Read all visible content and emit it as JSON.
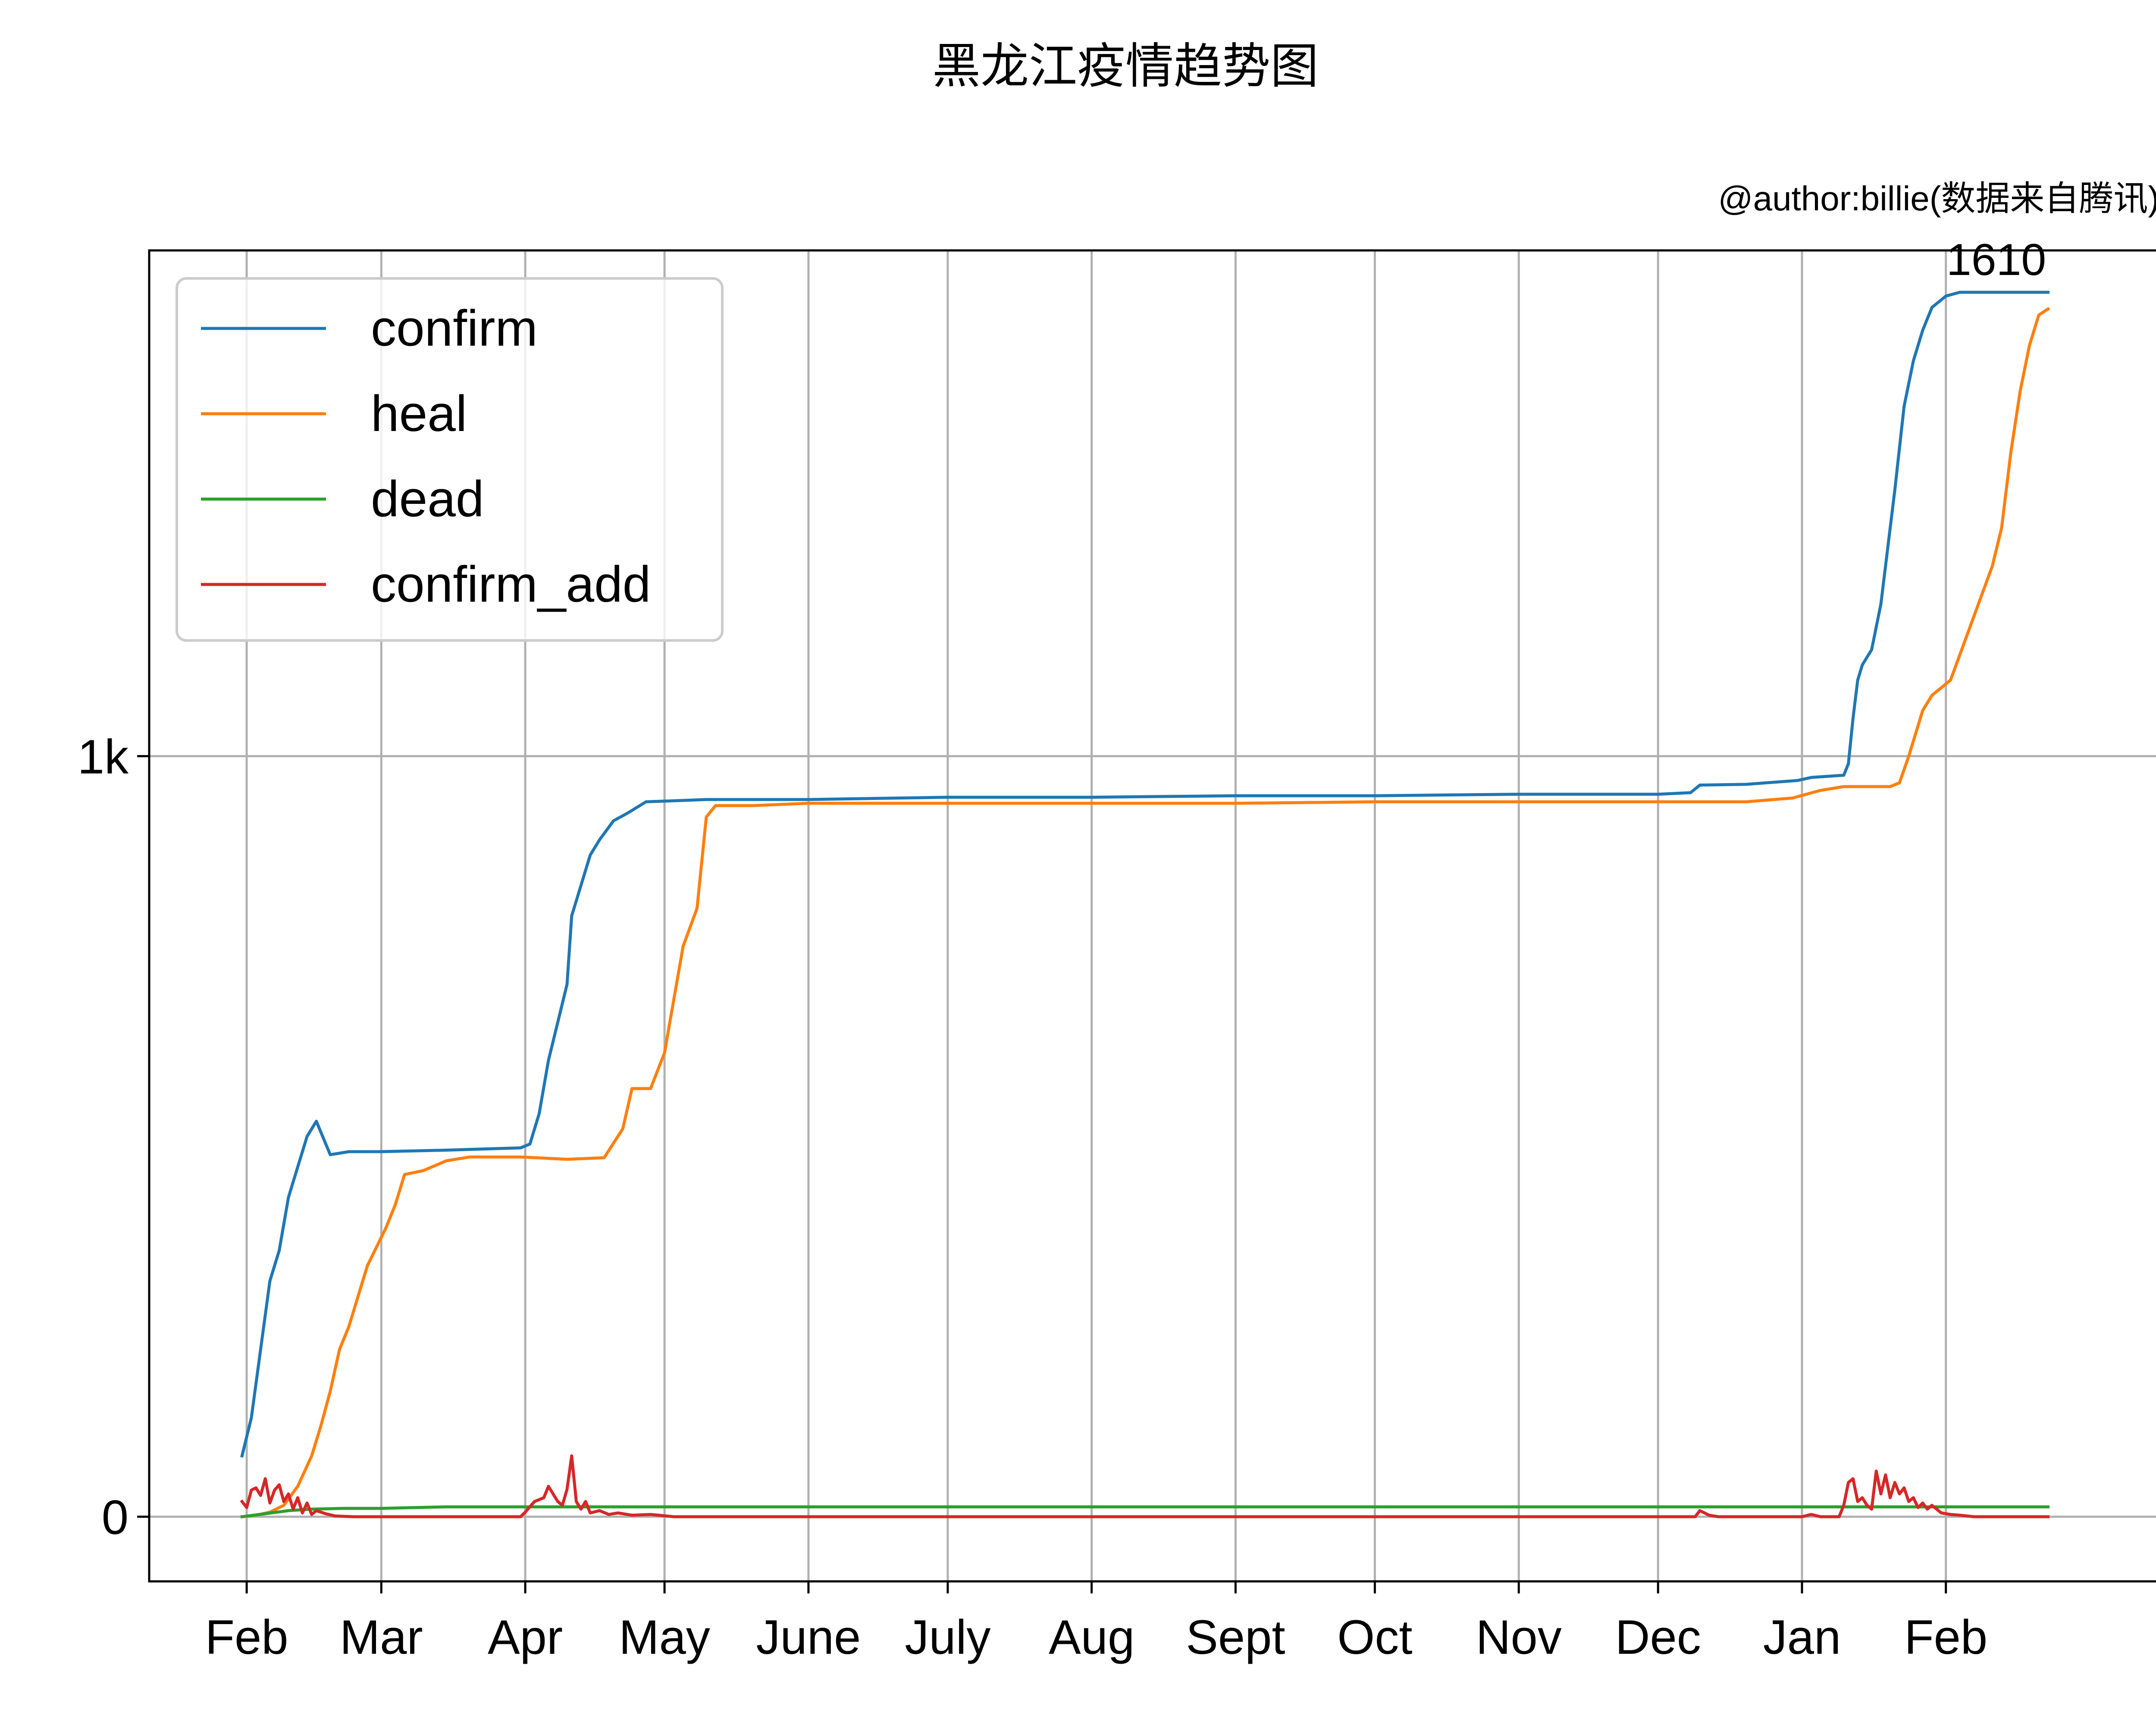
{
  "chart_data": {
    "type": "line",
    "title": "黑龙江疫情趋势图",
    "subtitle": "@author:billie(数据来自腾讯)",
    "annotation": "1610",
    "xlabel": "",
    "ylabel": "",
    "xlim": [
      "2020-01-11",
      "2021-03-19"
    ],
    "ylim": [
      -85,
      1665
    ],
    "x_ticks": [
      {
        "date": "2020-02-01",
        "label": "Feb"
      },
      {
        "date": "2020-03-01",
        "label": "Mar"
      },
      {
        "date": "2020-04-01",
        "label": "Apr"
      },
      {
        "date": "2020-05-01",
        "label": "May"
      },
      {
        "date": "2020-06-01",
        "label": "June"
      },
      {
        "date": "2020-07-01",
        "label": "July"
      },
      {
        "date": "2020-08-01",
        "label": "Aug"
      },
      {
        "date": "2020-09-01",
        "label": "Sept"
      },
      {
        "date": "2020-10-01",
        "label": "Oct"
      },
      {
        "date": "2020-11-01",
        "label": "Nov"
      },
      {
        "date": "2020-12-01",
        "label": "Dec"
      },
      {
        "date": "2021-01-01",
        "label": "Jan"
      },
      {
        "date": "2021-02-01",
        "label": "Feb"
      }
    ],
    "y_ticks": [
      {
        "value": 0,
        "label": "0"
      },
      {
        "value": 1000,
        "label": "1k"
      }
    ],
    "grid": true,
    "legend_position": "upper-left",
    "series": [
      {
        "name": "confirm",
        "color": "#1f77b4",
        "points": [
          [
            "2020-01-31",
            80
          ],
          [
            "2020-02-02",
            130
          ],
          [
            "2020-02-04",
            220
          ],
          [
            "2020-02-06",
            310
          ],
          [
            "2020-02-08",
            350
          ],
          [
            "2020-02-10",
            420
          ],
          [
            "2020-02-12",
            460
          ],
          [
            "2020-02-14",
            500
          ],
          [
            "2020-02-16",
            520
          ],
          [
            "2020-02-19",
            476
          ],
          [
            "2020-02-23",
            480
          ],
          [
            "2020-03-01",
            480
          ],
          [
            "2020-03-15",
            482
          ],
          [
            "2020-03-31",
            485
          ],
          [
            "2020-04-02",
            490
          ],
          [
            "2020-04-04",
            530
          ],
          [
            "2020-04-06",
            600
          ],
          [
            "2020-04-08",
            650
          ],
          [
            "2020-04-10",
            700
          ],
          [
            "2020-04-11",
            790
          ],
          [
            "2020-04-13",
            830
          ],
          [
            "2020-04-15",
            870
          ],
          [
            "2020-04-17",
            890
          ],
          [
            "2020-04-20",
            915
          ],
          [
            "2020-04-23",
            925
          ],
          [
            "2020-04-27",
            940
          ],
          [
            "2020-05-10",
            943
          ],
          [
            "2020-06-01",
            943
          ],
          [
            "2020-07-01",
            946
          ],
          [
            "2020-08-01",
            946
          ],
          [
            "2020-09-01",
            948
          ],
          [
            "2020-10-01",
            948
          ],
          [
            "2020-11-01",
            950
          ],
          [
            "2020-12-01",
            950
          ],
          [
            "2020-12-08",
            952
          ],
          [
            "2020-12-10",
            962
          ],
          [
            "2020-12-20",
            963
          ],
          [
            "2020-12-31",
            968
          ],
          [
            "2021-01-03",
            972
          ],
          [
            "2021-01-10",
            975
          ],
          [
            "2021-01-11",
            990
          ],
          [
            "2021-01-12",
            1050
          ],
          [
            "2021-01-13",
            1100
          ],
          [
            "2021-01-14",
            1120
          ],
          [
            "2021-01-16",
            1140
          ],
          [
            "2021-01-18",
            1200
          ],
          [
            "2021-01-20",
            1300
          ],
          [
            "2021-01-21",
            1350
          ],
          [
            "2021-01-23",
            1460
          ],
          [
            "2021-01-25",
            1520
          ],
          [
            "2021-01-27",
            1560
          ],
          [
            "2021-01-29",
            1590
          ],
          [
            "2021-02-01",
            1605
          ],
          [
            "2021-02-04",
            1610
          ],
          [
            "2021-02-23",
            1610
          ]
        ]
      },
      {
        "name": "heal",
        "color": "#ff7f0e",
        "points": [
          [
            "2020-01-31",
            0
          ],
          [
            "2020-02-03",
            2
          ],
          [
            "2020-02-06",
            6
          ],
          [
            "2020-02-09",
            15
          ],
          [
            "2020-02-12",
            40
          ],
          [
            "2020-02-15",
            80
          ],
          [
            "2020-02-17",
            120
          ],
          [
            "2020-02-19",
            165
          ],
          [
            "2020-02-21",
            220
          ],
          [
            "2020-02-23",
            250
          ],
          [
            "2020-02-25",
            290
          ],
          [
            "2020-02-27",
            330
          ],
          [
            "2020-02-29",
            355
          ],
          [
            "2020-03-02",
            380
          ],
          [
            "2020-03-04",
            410
          ],
          [
            "2020-03-06",
            450
          ],
          [
            "2020-03-10",
            455
          ],
          [
            "2020-03-15",
            468
          ],
          [
            "2020-03-20",
            473
          ],
          [
            "2020-03-31",
            473
          ],
          [
            "2020-04-10",
            470
          ],
          [
            "2020-04-18",
            472
          ],
          [
            "2020-04-22",
            510
          ],
          [
            "2020-04-24",
            563
          ],
          [
            "2020-04-28",
            563
          ],
          [
            "2020-05-01",
            610
          ],
          [
            "2020-05-03",
            680
          ],
          [
            "2020-05-05",
            750
          ],
          [
            "2020-05-08",
            800
          ],
          [
            "2020-05-10",
            920
          ],
          [
            "2020-05-12",
            935
          ],
          [
            "2020-05-20",
            935
          ],
          [
            "2020-06-01",
            938
          ],
          [
            "2020-07-01",
            938
          ],
          [
            "2020-08-01",
            938
          ],
          [
            "2020-09-01",
            938
          ],
          [
            "2020-10-01",
            940
          ],
          [
            "2020-11-01",
            940
          ],
          [
            "2020-12-01",
            940
          ],
          [
            "2020-12-20",
            940
          ],
          [
            "2020-12-30",
            945
          ],
          [
            "2021-01-05",
            955
          ],
          [
            "2021-01-10",
            960
          ],
          [
            "2021-01-20",
            960
          ],
          [
            "2021-01-22",
            965
          ],
          [
            "2021-01-24",
            1000
          ],
          [
            "2021-01-27",
            1060
          ],
          [
            "2021-01-29",
            1080
          ],
          [
            "2021-02-02",
            1100
          ],
          [
            "2021-02-05",
            1150
          ],
          [
            "2021-02-08",
            1200
          ],
          [
            "2021-02-11",
            1250
          ],
          [
            "2021-02-13",
            1300
          ],
          [
            "2021-02-15",
            1400
          ],
          [
            "2021-02-17",
            1480
          ],
          [
            "2021-02-19",
            1540
          ],
          [
            "2021-02-21",
            1580
          ],
          [
            "2021-02-23",
            1588
          ]
        ]
      },
      {
        "name": "dead",
        "color": "#2ca02c",
        "points": [
          [
            "2020-01-31",
            0
          ],
          [
            "2020-02-05",
            4
          ],
          [
            "2020-02-10",
            8
          ],
          [
            "2020-02-15",
            10
          ],
          [
            "2020-02-22",
            11
          ],
          [
            "2020-03-01",
            11
          ],
          [
            "2020-03-15",
            13
          ],
          [
            "2020-04-01",
            13
          ],
          [
            "2020-06-01",
            13
          ],
          [
            "2020-09-01",
            13
          ],
          [
            "2020-12-01",
            13
          ],
          [
            "2021-01-01",
            13
          ],
          [
            "2021-02-23",
            13
          ]
        ]
      },
      {
        "name": "confirm_add",
        "color": "#d62728",
        "points": [
          [
            "2020-01-31",
            20
          ],
          [
            "2020-02-01",
            12
          ],
          [
            "2020-02-02",
            35
          ],
          [
            "2020-02-03",
            38
          ],
          [
            "2020-02-04",
            28
          ],
          [
            "2020-02-05",
            50
          ],
          [
            "2020-02-06",
            18
          ],
          [
            "2020-02-07",
            35
          ],
          [
            "2020-02-08",
            42
          ],
          [
            "2020-02-09",
            20
          ],
          [
            "2020-02-10",
            30
          ],
          [
            "2020-02-11",
            10
          ],
          [
            "2020-02-12",
            25
          ],
          [
            "2020-02-13",
            5
          ],
          [
            "2020-02-14",
            18
          ],
          [
            "2020-02-15",
            3
          ],
          [
            "2020-02-16",
            8
          ],
          [
            "2020-02-18",
            4
          ],
          [
            "2020-02-20",
            1
          ],
          [
            "2020-02-24",
            0
          ],
          [
            "2020-03-01",
            0
          ],
          [
            "2020-03-20",
            0
          ],
          [
            "2020-03-31",
            0
          ],
          [
            "2020-04-01",
            6
          ],
          [
            "2020-04-03",
            20
          ],
          [
            "2020-04-05",
            25
          ],
          [
            "2020-04-06",
            40
          ],
          [
            "2020-04-07",
            30
          ],
          [
            "2020-04-08",
            20
          ],
          [
            "2020-04-09",
            15
          ],
          [
            "2020-04-10",
            36
          ],
          [
            "2020-04-11",
            80
          ],
          [
            "2020-04-12",
            20
          ],
          [
            "2020-04-13",
            10
          ],
          [
            "2020-04-14",
            20
          ],
          [
            "2020-04-15",
            5
          ],
          [
            "2020-04-17",
            8
          ],
          [
            "2020-04-19",
            3
          ],
          [
            "2020-04-21",
            5
          ],
          [
            "2020-04-24",
            2
          ],
          [
            "2020-04-28",
            3
          ],
          [
            "2020-05-03",
            0
          ],
          [
            "2020-06-01",
            0
          ],
          [
            "2020-08-01",
            0
          ],
          [
            "2020-11-01",
            0
          ],
          [
            "2020-12-09",
            0
          ],
          [
            "2020-12-10",
            8
          ],
          [
            "2020-12-12",
            2
          ],
          [
            "2020-12-14",
            0
          ],
          [
            "2021-01-01",
            0
          ],
          [
            "2021-01-03",
            3
          ],
          [
            "2021-01-05",
            0
          ],
          [
            "2021-01-09",
            0
          ],
          [
            "2021-01-10",
            15
          ],
          [
            "2021-01-11",
            45
          ],
          [
            "2021-01-12",
            50
          ],
          [
            "2021-01-13",
            20
          ],
          [
            "2021-01-14",
            25
          ],
          [
            "2021-01-15",
            15
          ],
          [
            "2021-01-16",
            10
          ],
          [
            "2021-01-17",
            60
          ],
          [
            "2021-01-18",
            30
          ],
          [
            "2021-01-19",
            55
          ],
          [
            "2021-01-20",
            25
          ],
          [
            "2021-01-21",
            45
          ],
          [
            "2021-01-22",
            30
          ],
          [
            "2021-01-23",
            38
          ],
          [
            "2021-01-24",
            20
          ],
          [
            "2021-01-25",
            25
          ],
          [
            "2021-01-26",
            12
          ],
          [
            "2021-01-27",
            18
          ],
          [
            "2021-01-28",
            10
          ],
          [
            "2021-01-29",
            15
          ],
          [
            "2021-01-31",
            5
          ],
          [
            "2021-02-02",
            3
          ],
          [
            "2021-02-04",
            2
          ],
          [
            "2021-02-07",
            0
          ],
          [
            "2021-02-14",
            0
          ],
          [
            "2021-02-23",
            0
          ]
        ]
      }
    ]
  }
}
